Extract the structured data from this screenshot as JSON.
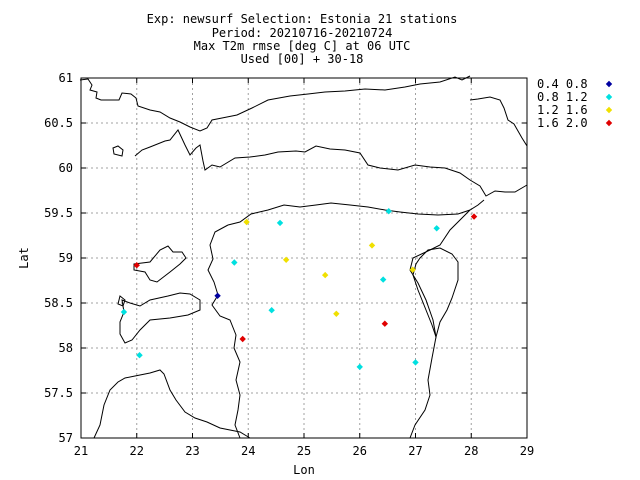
{
  "title_lines": [
    "Exp: newsurf   Selection: Estonia     21 stations",
    "Period: 20210716-20210724",
    "Max T2m rmse [deg C] at  06 UTC",
    "Used [00] + 30-18"
  ],
  "colors": {
    "dark_blue": "#0000a0",
    "cyan": "#00e0e0",
    "yellow": "#f0e000",
    "red": "#e00000",
    "coast": "#000000",
    "grid": "#a0a0a0"
  },
  "chart_data": {
    "type": "scatter",
    "title": "Exp: newsurf   Selection: Estonia     21 stations / Period: 20210716-20210724 / Max T2m rmse [deg C] at  06 UTC / Used [00] + 30-18",
    "xlabel": "Lon",
    "ylabel": "Lat",
    "xlim": [
      21,
      29
    ],
    "ylim": [
      57,
      61
    ],
    "xticks": [
      "21",
      "22",
      "23",
      "24",
      "25",
      "26",
      "27",
      "28",
      "29"
    ],
    "yticks": [
      "57",
      "57.5",
      "58",
      "58.5",
      "59",
      "59.5",
      "60",
      "60.5",
      "61"
    ],
    "grid": true,
    "legend_position": "top-right",
    "legend": [
      {
        "label": "0.4 0.8",
        "color": "#0000a0"
      },
      {
        "label": "0.8 1.2",
        "color": "#00e0e0"
      },
      {
        "label": "1.2 1.6",
        "color": "#f0e000"
      },
      {
        "label": "1.6 2.0",
        "color": "#e00000"
      }
    ],
    "points": [
      {
        "lon": 23.45,
        "lat": 58.58,
        "class": 0
      },
      {
        "lon": 24.57,
        "lat": 59.39,
        "class": 1
      },
      {
        "lon": 26.52,
        "lat": 59.52,
        "class": 1
      },
      {
        "lon": 27.38,
        "lat": 59.33,
        "class": 1
      },
      {
        "lon": 23.75,
        "lat": 58.95,
        "class": 1
      },
      {
        "lon": 26.42,
        "lat": 58.76,
        "class": 1
      },
      {
        "lon": 24.42,
        "lat": 58.42,
        "class": 1
      },
      {
        "lon": 21.77,
        "lat": 58.4,
        "class": 1
      },
      {
        "lon": 22.05,
        "lat": 57.92,
        "class": 1
      },
      {
        "lon": 26.0,
        "lat": 57.79,
        "class": 1
      },
      {
        "lon": 27.0,
        "lat": 57.84,
        "class": 1
      },
      {
        "lon": 23.97,
        "lat": 59.4,
        "class": 2
      },
      {
        "lon": 26.22,
        "lat": 59.14,
        "class": 2
      },
      {
        "lon": 24.68,
        "lat": 58.98,
        "class": 2
      },
      {
        "lon": 25.38,
        "lat": 58.81,
        "class": 2
      },
      {
        "lon": 26.95,
        "lat": 58.87,
        "class": 2
      },
      {
        "lon": 25.58,
        "lat": 58.38,
        "class": 2
      },
      {
        "lon": 28.05,
        "lat": 59.46,
        "class": 3
      },
      {
        "lon": 22.0,
        "lat": 58.92,
        "class": 3
      },
      {
        "lon": 26.45,
        "lat": 58.27,
        "class": 3
      },
      {
        "lon": 23.9,
        "lat": 58.1,
        "class": 3
      }
    ]
  }
}
